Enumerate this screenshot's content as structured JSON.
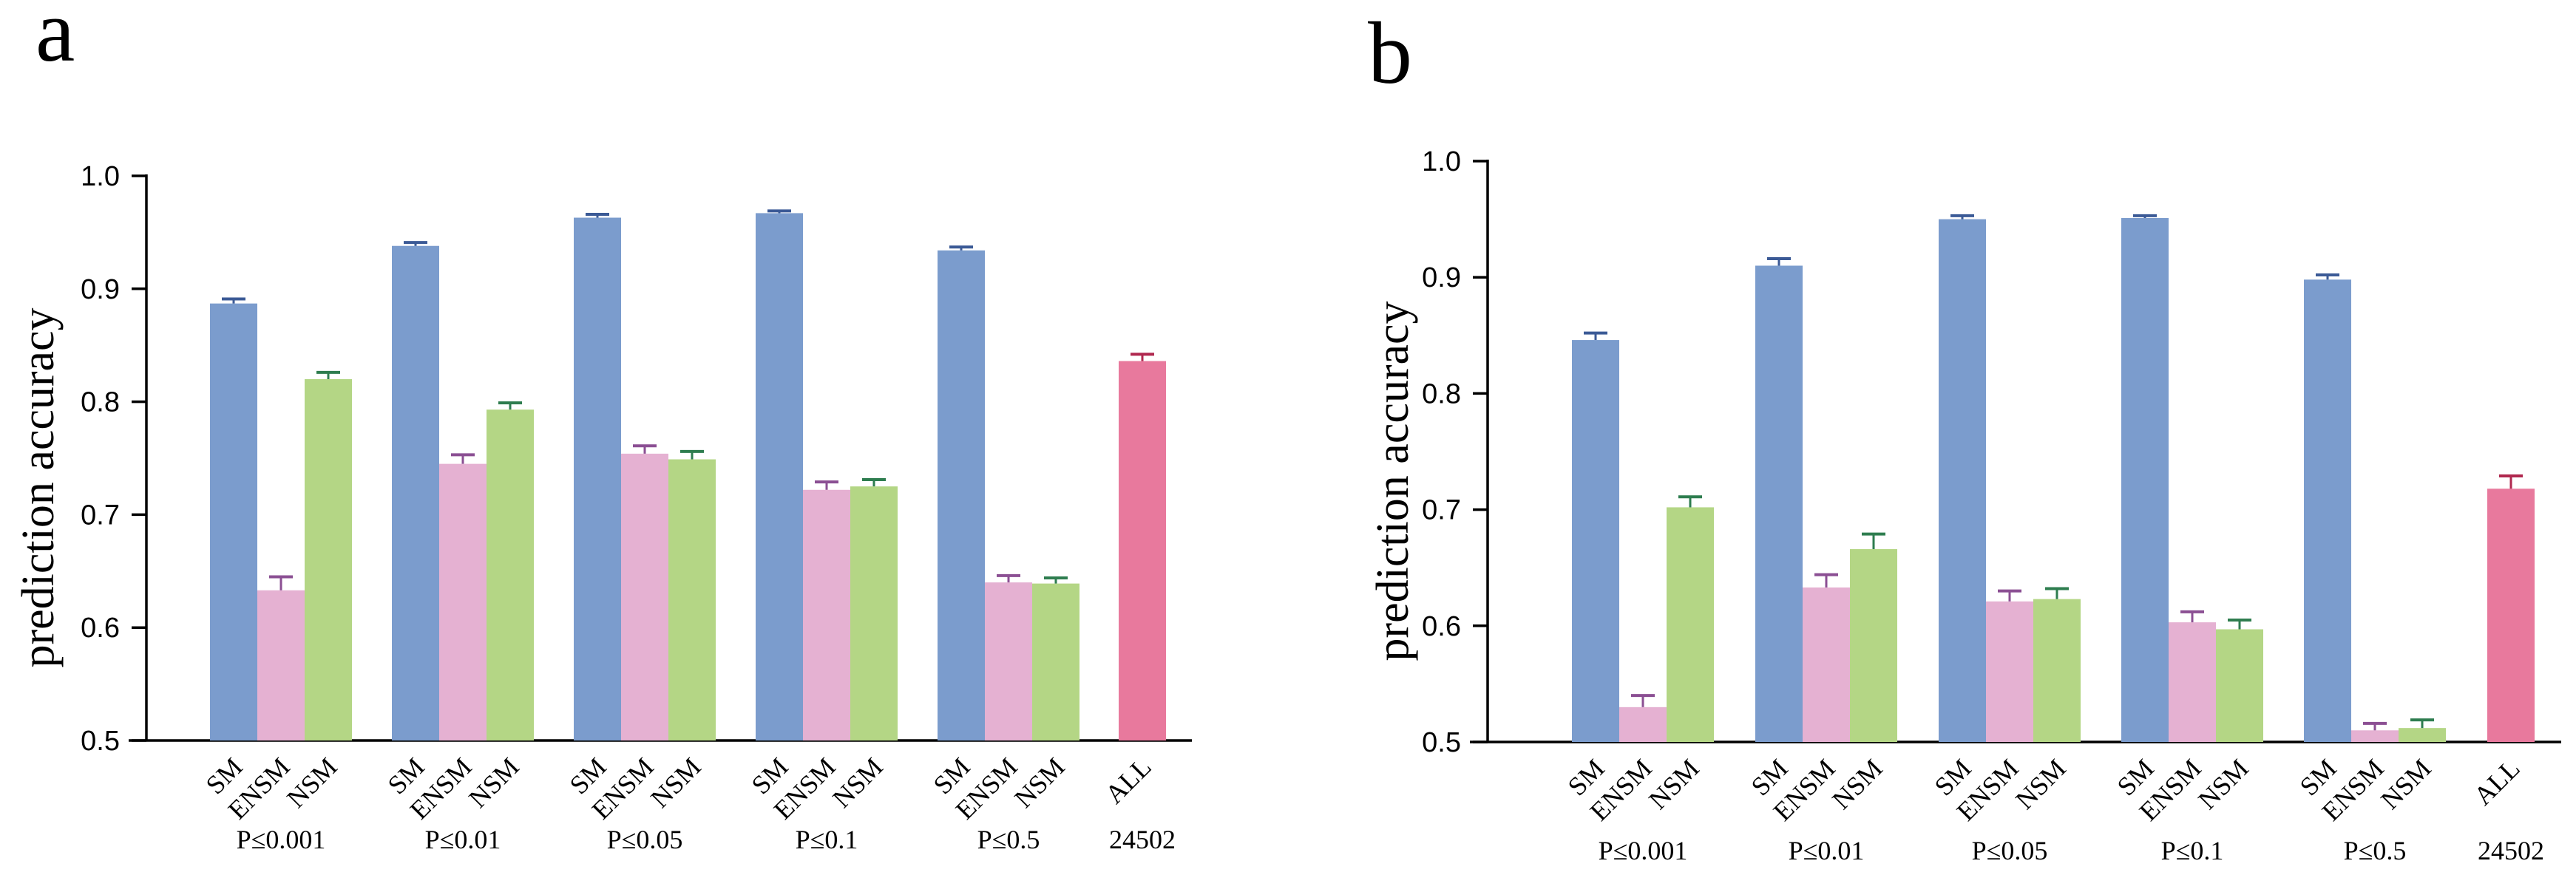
{
  "chart_data": [
    {
      "panel": "a",
      "type": "bar",
      "ylabel": "prediction accuracy",
      "ylim": [
        0.5,
        1.0
      ],
      "yticks": [
        "0.5",
        "0.6",
        "0.7",
        "0.8",
        "0.9",
        "1.0"
      ],
      "groups": [
        {
          "label": "P≤0.001",
          "bars": [
            {
              "name": "SM",
              "value": 0.887,
              "err": 0.004
            },
            {
              "name": "ENSM",
              "value": 0.633,
              "err": 0.012
            },
            {
              "name": "NSM",
              "value": 0.82,
              "err": 0.006
            }
          ]
        },
        {
          "label": "P≤0.01",
          "bars": [
            {
              "name": "SM",
              "value": 0.938,
              "err": 0.003
            },
            {
              "name": "ENSM",
              "value": 0.745,
              "err": 0.008
            },
            {
              "name": "NSM",
              "value": 0.793,
              "err": 0.006
            }
          ]
        },
        {
          "label": "P≤0.05",
          "bars": [
            {
              "name": "SM",
              "value": 0.963,
              "err": 0.003
            },
            {
              "name": "ENSM",
              "value": 0.754,
              "err": 0.007
            },
            {
              "name": "NSM",
              "value": 0.749,
              "err": 0.007
            }
          ]
        },
        {
          "label": "P≤0.1",
          "bars": [
            {
              "name": "SM",
              "value": 0.967,
              "err": 0.002
            },
            {
              "name": "ENSM",
              "value": 0.722,
              "err": 0.007
            },
            {
              "name": "NSM",
              "value": 0.725,
              "err": 0.006
            }
          ]
        },
        {
          "label": "P≤0.5",
          "bars": [
            {
              "name": "SM",
              "value": 0.934,
              "err": 0.003
            },
            {
              "name": "ENSM",
              "value": 0.64,
              "err": 0.006
            },
            {
              "name": "NSM",
              "value": 0.639,
              "err": 0.005
            }
          ]
        },
        {
          "label": "24502",
          "bars": [
            {
              "name": "ALL",
              "value": 0.836,
              "err": 0.006
            }
          ]
        }
      ]
    },
    {
      "panel": "b",
      "type": "bar",
      "ylabel": "prediction accuracy",
      "ylim": [
        0.5,
        1.0
      ],
      "yticks": [
        "0.5",
        "0.6",
        "0.7",
        "0.8",
        "0.9",
        "1.0"
      ],
      "groups": [
        {
          "label": "P≤0.001",
          "bars": [
            {
              "name": "SM",
              "value": 0.846,
              "err": 0.006
            },
            {
              "name": "ENSM",
              "value": 0.53,
              "err": 0.01
            },
            {
              "name": "NSM",
              "value": 0.702,
              "err": 0.009
            }
          ]
        },
        {
          "label": "P≤0.01",
          "bars": [
            {
              "name": "SM",
              "value": 0.91,
              "err": 0.006
            },
            {
              "name": "ENSM",
              "value": 0.633,
              "err": 0.011
            },
            {
              "name": "NSM",
              "value": 0.666,
              "err": 0.013
            }
          ]
        },
        {
          "label": "P≤0.05",
          "bars": [
            {
              "name": "SM",
              "value": 0.95,
              "err": 0.003
            },
            {
              "name": "ENSM",
              "value": 0.621,
              "err": 0.009
            },
            {
              "name": "NSM",
              "value": 0.623,
              "err": 0.009
            }
          ]
        },
        {
          "label": "P≤0.1",
          "bars": [
            {
              "name": "SM",
              "value": 0.951,
              "err": 0.002
            },
            {
              "name": "ENSM",
              "value": 0.603,
              "err": 0.009
            },
            {
              "name": "NSM",
              "value": 0.597,
              "err": 0.008
            }
          ]
        },
        {
          "label": "P≤0.5",
          "bars": [
            {
              "name": "SM",
              "value": 0.898,
              "err": 0.004
            },
            {
              "name": "ENSM",
              "value": 0.51,
              "err": 0.006
            },
            {
              "name": "NSM",
              "value": 0.512,
              "err": 0.007
            }
          ]
        },
        {
          "label": "24502",
          "bars": [
            {
              "name": "ALL",
              "value": 0.718,
              "err": 0.011
            }
          ]
        }
      ]
    }
  ],
  "colors": {
    "SM": "#7b9ccd",
    "ENSM": "#e5b1d2",
    "NSM": "#b4d685",
    "ALL": "#e8799d",
    "err_SM": "#3b5a96",
    "err_ENSM": "#8b4f93",
    "err_NSM": "#2e7d4f",
    "err_ALL": "#b0284f"
  }
}
